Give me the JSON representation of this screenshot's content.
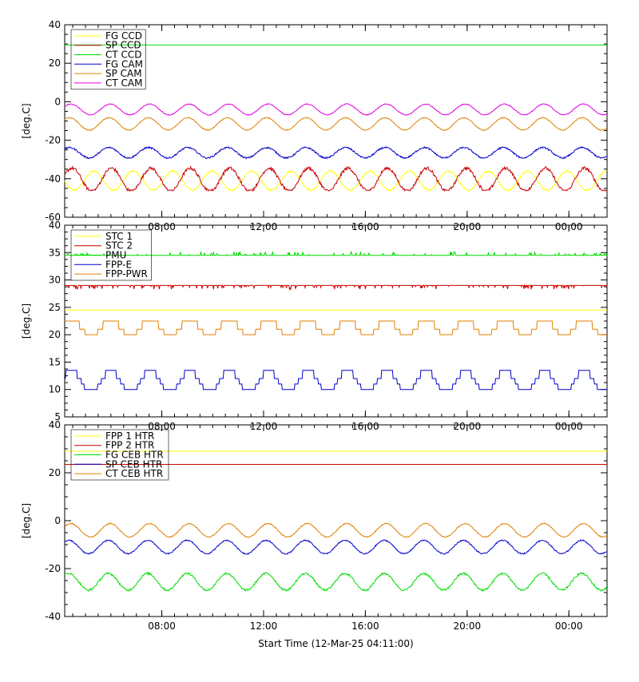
{
  "colors": {
    "yellow": "#ffff00",
    "red": "#cc0000",
    "green": "#00dd00",
    "blue": "#0000cc",
    "orange": "#e08000",
    "magenta": "#e000e0",
    "axis": "#000000"
  },
  "chart_data": [
    {
      "type": "line",
      "ylabel": "[deg.C]",
      "xlabel": "",
      "ylim": [
        -60,
        40
      ],
      "yticks": [
        40,
        20,
        0,
        -20,
        -40,
        -60
      ],
      "xlim": [
        "04:11",
        "25:30"
      ],
      "xticks": [
        "08:00",
        "12:00",
        "16:00",
        "20:00",
        "00:00"
      ],
      "legend_position": "top-left",
      "series": [
        {
          "name": "FG CCD",
          "color": "yellow",
          "pattern": "periodic",
          "mean": -41,
          "amplitude": 5,
          "period_h": 1.55,
          "phase": 3.2,
          "noise": 0.4,
          "values_range": [
            -46,
            -36
          ]
        },
        {
          "name": "SP CCD",
          "color": "red",
          "pattern": "periodic",
          "mean": -40.5,
          "amplitude": 6,
          "period_h": 1.55,
          "phase": 0.4,
          "noise": 0.8,
          "floor": -46,
          "values_range": [
            -46,
            -34
          ]
        },
        {
          "name": "CT CCD",
          "color": "green",
          "pattern": "constant",
          "mean": 29.5,
          "noise": 0
        },
        {
          "name": "FG CAM",
          "color": "blue",
          "pattern": "periodic",
          "mean": -26.5,
          "amplitude": 2.7,
          "period_h": 1.55,
          "phase": 0.8,
          "noise": 0.4,
          "values_range": [
            -30,
            -23
          ]
        },
        {
          "name": "SP CAM",
          "color": "orange",
          "pattern": "periodic",
          "mean": -11.5,
          "amplitude": 3.2,
          "period_h": 1.55,
          "phase": 0.8,
          "noise": 0.2,
          "values_range": [
            -15,
            -8
          ]
        },
        {
          "name": "CT CAM",
          "color": "magenta",
          "pattern": "periodic",
          "mean": -4,
          "amplitude": 2.8,
          "period_h": 1.55,
          "phase": 0.6,
          "noise": 0.2,
          "values_range": [
            -7,
            -1
          ]
        }
      ]
    },
    {
      "type": "line",
      "ylabel": "[deg.C]",
      "xlabel": "",
      "ylim": [
        5,
        40
      ],
      "yticks": [
        40,
        35,
        30,
        25,
        20,
        15,
        10,
        5
      ],
      "xlim": [
        "04:11",
        "25:30"
      ],
      "xticks": [
        "08:00",
        "12:00",
        "16:00",
        "20:00",
        "00:00"
      ],
      "legend_position": "top-left",
      "series": [
        {
          "name": "STC 1",
          "color": "yellow",
          "pattern": "constant",
          "mean": 24.5,
          "noise": 0
        },
        {
          "name": "STC 2",
          "color": "red",
          "pattern": "spiky",
          "mean": 29,
          "spike": -0.7,
          "spike_rate": 0.12
        },
        {
          "name": "PMU",
          "color": "green",
          "pattern": "spiky",
          "mean": 34.5,
          "spike": 0.7,
          "spike_rate": 0.1
        },
        {
          "name": "FPP-E",
          "color": "blue",
          "pattern": "step",
          "mean": 11.5,
          "amplitude": 2,
          "period_h": 1.55,
          "phase": 0.5,
          "levels": [
            10,
            11,
            12,
            13.5
          ]
        },
        {
          "name": "FPP-PWR",
          "color": "orange",
          "pattern": "step",
          "mean": 21.3,
          "amplitude": 1.5,
          "period_h": 1.55,
          "phase": 0.5,
          "levels": [
            20,
            21,
            22.5
          ]
        }
      ]
    },
    {
      "type": "line",
      "ylabel": "[deg.C]",
      "xlabel": "Start Time (12-Mar-25 04:11:00)",
      "ylim": [
        -40,
        40
      ],
      "yticks": [
        40,
        20,
        0,
        -20,
        -40
      ],
      "xlim": [
        "04:11",
        "25:30"
      ],
      "xticks": [
        "08:00",
        "12:00",
        "16:00",
        "20:00",
        "00:00"
      ],
      "legend_position": "top-left",
      "series": [
        {
          "name": "FPP 1 HTR",
          "color": "yellow",
          "pattern": "constant",
          "mean": 29,
          "noise": 0
        },
        {
          "name": "FPP 2 HTR",
          "color": "red",
          "pattern": "constant",
          "mean": 23.5,
          "noise": 0
        },
        {
          "name": "FG CEB HTR",
          "color": "green",
          "pattern": "periodic",
          "mean": -25.5,
          "amplitude": 3.5,
          "period_h": 1.55,
          "phase": 0.9,
          "noise": 0.4,
          "values_range": [
            -29,
            -22
          ]
        },
        {
          "name": "SP CEB HTR",
          "color": "blue",
          "pattern": "periodic",
          "mean": -11,
          "amplitude": 2.8,
          "period_h": 1.55,
          "phase": 0.9,
          "noise": 0.25,
          "values_range": [
            -14,
            -8
          ]
        },
        {
          "name": "CT CEB HTR",
          "color": "orange",
          "pattern": "periodic",
          "mean": -4,
          "amplitude": 2.8,
          "period_h": 1.55,
          "phase": 0.6,
          "noise": 0.2,
          "values_range": [
            -7,
            -1
          ]
        }
      ]
    }
  ]
}
